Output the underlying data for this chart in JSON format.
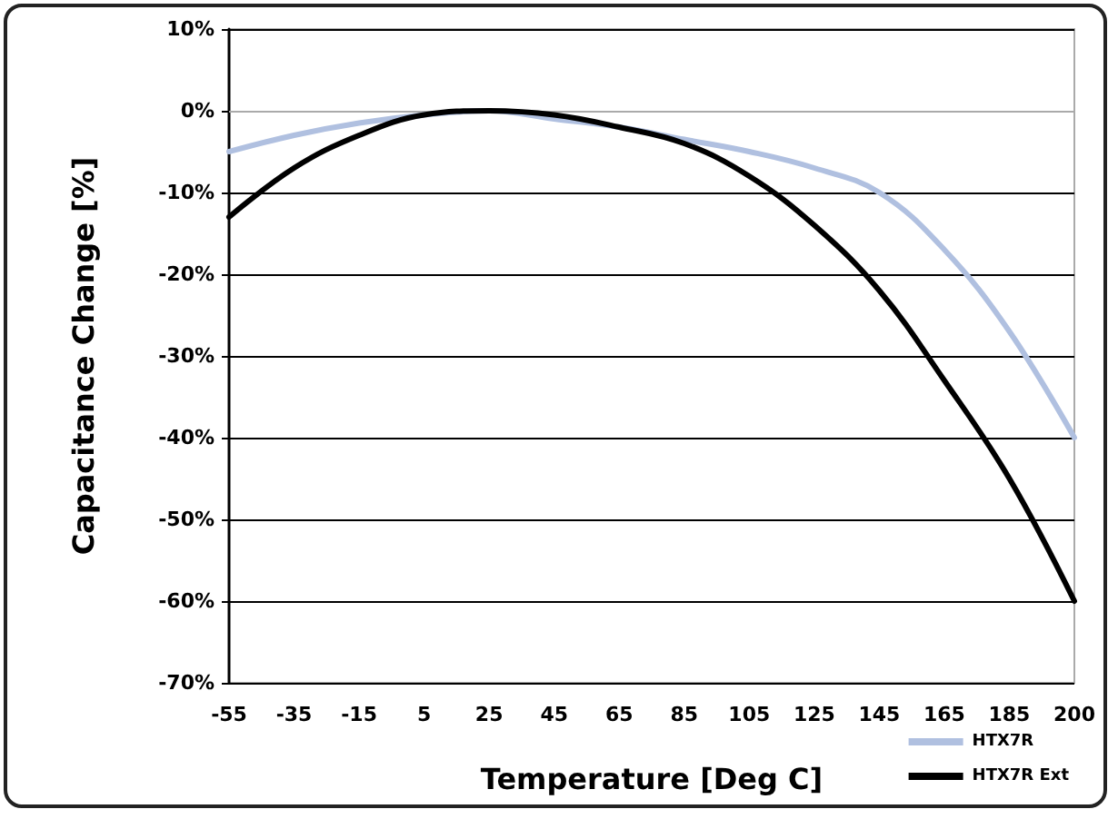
{
  "chart_data": {
    "type": "line",
    "xlabel": "Temperature [Deg C]",
    "ylabel": "Capacitance Change [%]",
    "categories": [
      "-55",
      "-35",
      "-15",
      "5",
      "25",
      "45",
      "65",
      "85",
      "105",
      "125",
      "145",
      "165",
      "185",
      "200"
    ],
    "series": [
      {
        "name": "HTX7R",
        "color": "#b0c0e0",
        "values": [
          -5,
          -3,
          -1.5,
          -0.5,
          0,
          -1,
          -2,
          -3.5,
          -5,
          -7,
          -10,
          -17,
          -27,
          -40
        ]
      },
      {
        "name": "HTX7R Ext",
        "color": "#000000",
        "values": [
          -13,
          -7,
          -3,
          -0.5,
          0,
          -0.5,
          -2,
          -4,
          -8,
          -14,
          -22,
          -33,
          -45,
          -60
        ]
      }
    ],
    "ylim": [
      -70,
      10
    ],
    "yticks": [
      {
        "value": -70,
        "label": "-70%"
      },
      {
        "value": -60,
        "label": "-60%"
      },
      {
        "value": -50,
        "label": "-50%"
      },
      {
        "value": -40,
        "label": "-40%"
      },
      {
        "value": -30,
        "label": "-30%"
      },
      {
        "value": -20,
        "label": "-20%"
      },
      {
        "value": -10,
        "label": "-10%"
      },
      {
        "value": 0,
        "label": "0%"
      },
      {
        "value": 10,
        "label": "10%"
      }
    ],
    "grid": "y",
    "legend": "bottom right",
    "marker": "none",
    "line_style": "solid"
  }
}
